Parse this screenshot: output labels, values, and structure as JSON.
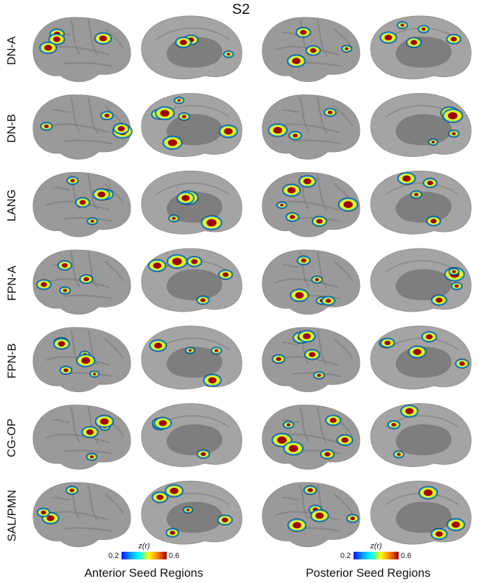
{
  "figure": {
    "title": "S2",
    "rows": [
      "DN-A",
      "DN-B",
      "LANG",
      "FPN-A",
      "FPN-B",
      "CG-OP",
      "SAL/PMN"
    ],
    "columns": [
      {
        "label": "Anterior Seed Regions"
      },
      {
        "label": "Posterior Seed Regions"
      }
    ],
    "colorbar": {
      "title": "z(r)",
      "min_label": "0.2",
      "max_label": "0.6",
      "colors": [
        "#1010ff",
        "#00a0ff",
        "#00ffff",
        "#ffff00",
        "#ff8000",
        "#a00000"
      ]
    },
    "brain_colors": {
      "lateral": "#9a9a9a",
      "medial": "#a4a4a4",
      "wall": "#7e7e7e",
      "sulcus": "#7f7f7f"
    }
  }
}
